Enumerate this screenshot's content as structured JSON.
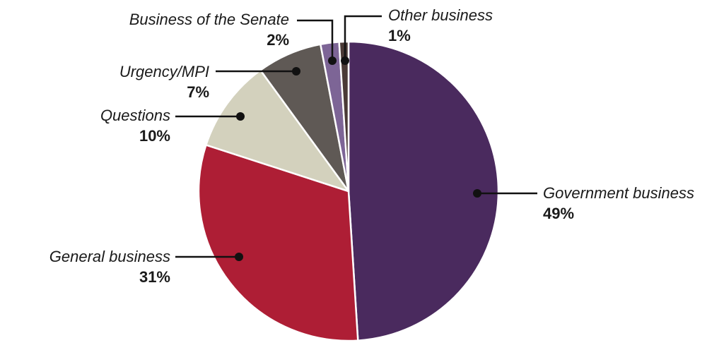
{
  "chart_data": {
    "type": "pie",
    "slices": [
      {
        "label": "Government business",
        "value": 49,
        "value_label": "49%",
        "color": "#4a2a5e"
      },
      {
        "label": "General business",
        "value": 31,
        "value_label": "31%",
        "color": "#ae1e35"
      },
      {
        "label": "Questions",
        "value": 10,
        "value_label": "10%",
        "color": "#d3d1bd"
      },
      {
        "label": "Urgency/MPI",
        "value": 7,
        "value_label": "7%",
        "color": "#5f5955"
      },
      {
        "label": "Business of the Senate",
        "value": 2,
        "value_label": "2%",
        "color": "#7d6596"
      },
      {
        "label": "Other business",
        "value": 1,
        "value_label": "1%",
        "color": "#4a3a36"
      }
    ]
  }
}
